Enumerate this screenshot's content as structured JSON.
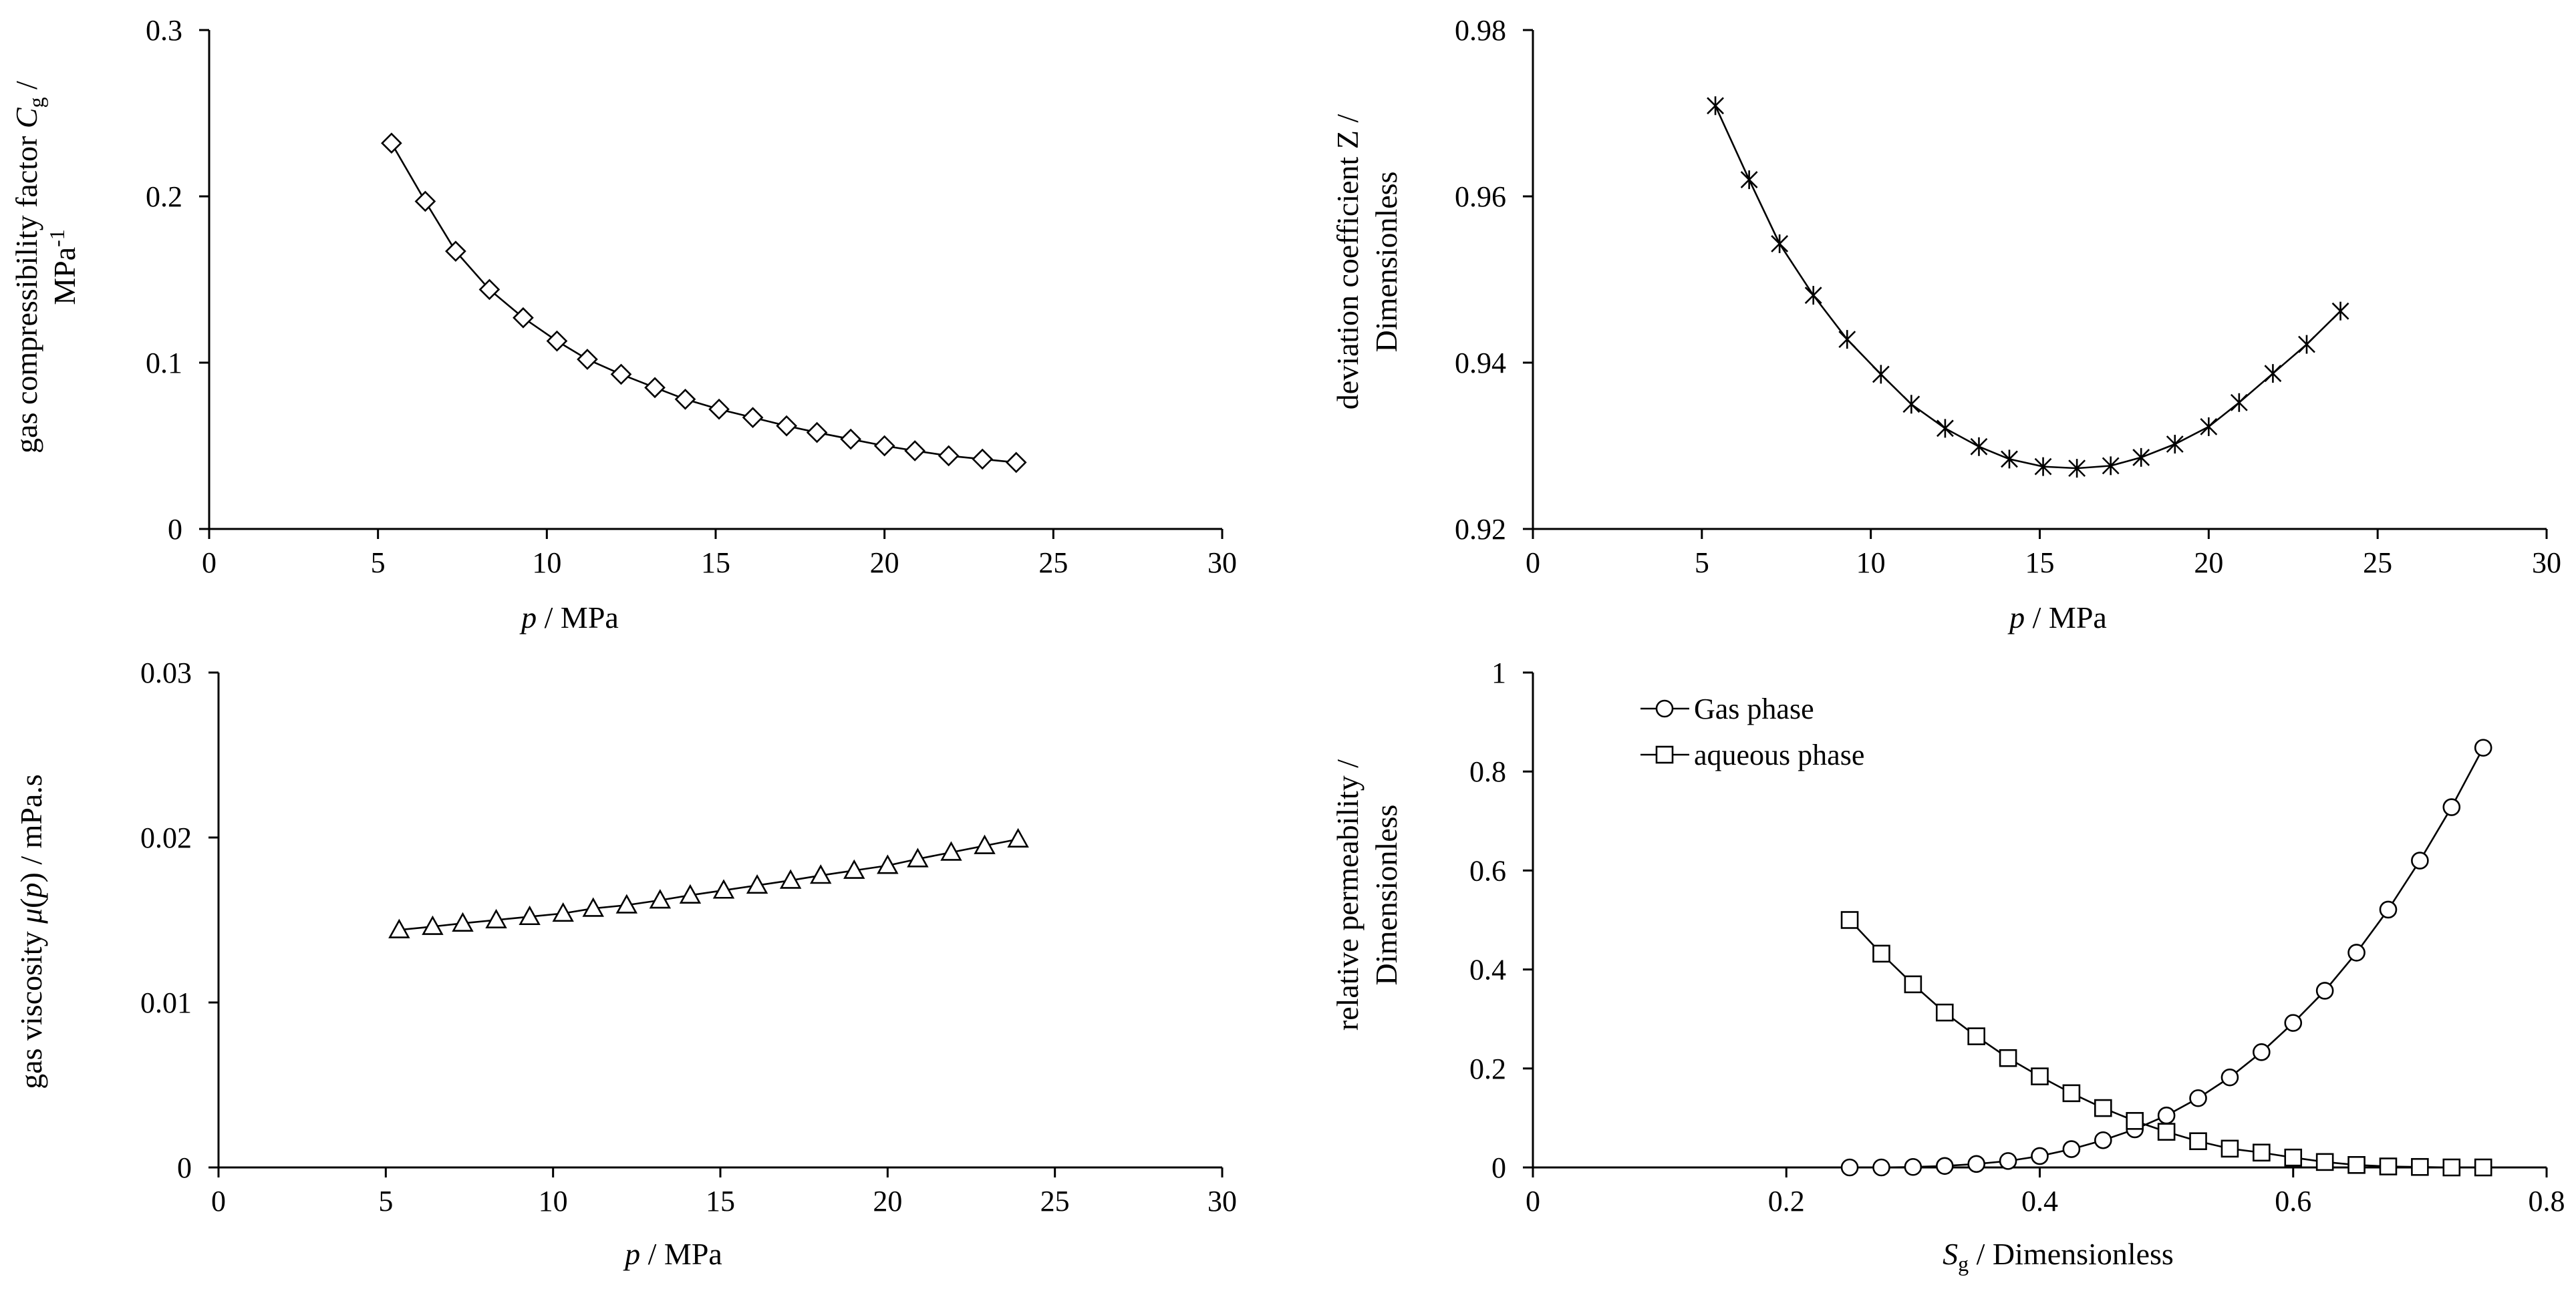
{
  "chart_data": [
    {
      "type": "line",
      "marker": "diamond",
      "x_ticks": [
        "0",
        "5",
        "10",
        "15",
        "20",
        "25",
        "30"
      ],
      "y_ticks": [
        "0",
        "0.1",
        "0.2",
        "0.3"
      ],
      "xlim": [
        0,
        30
      ],
      "ylim": [
        0,
        0.3
      ],
      "xlabel": {
        "italic": "p",
        "rest": " / MPa"
      },
      "ylabel": {
        "line1_pre": "gas compressibility factor ",
        "line1_italic": "C",
        "line1_sub": "g",
        "line1_post": " /",
        "line2": "MPa",
        "line2_sup": "-1"
      },
      "series": [
        {
          "name": "gas compressibility factor",
          "x": [
            5.4,
            6.4,
            7.3,
            8.3,
            9.3,
            10.3,
            11.2,
            12.2,
            13.2,
            14.1,
            15.1,
            16.1,
            17.1,
            18.0,
            19.0,
            20.0,
            20.9,
            21.9,
            22.9,
            23.9
          ],
          "y": [
            0.232,
            0.197,
            0.167,
            0.144,
            0.127,
            0.113,
            0.102,
            0.093,
            0.085,
            0.078,
            0.072,
            0.067,
            0.062,
            0.058,
            0.054,
            0.05,
            0.047,
            0.044,
            0.042,
            0.04
          ]
        }
      ]
    },
    {
      "type": "line",
      "marker": "asterisk",
      "x_ticks": [
        "0",
        "5",
        "10",
        "15",
        "20",
        "25",
        "30"
      ],
      "y_ticks": [
        "0.92",
        "0.94",
        "0.96",
        "0.98"
      ],
      "xlim": [
        0,
        30
      ],
      "ylim": [
        0.92,
        0.98
      ],
      "xlabel": {
        "italic": "p",
        "rest": " / MPa"
      },
      "ylabel": {
        "line1": "deviation coefficient Z /",
        "line2": "Dimensionless"
      },
      "series": [
        {
          "name": "deviation coefficient Z",
          "x": [
            5.4,
            6.4,
            7.3,
            8.3,
            9.3,
            10.3,
            11.2,
            12.2,
            13.2,
            14.1,
            15.1,
            16.1,
            17.1,
            18.0,
            19.0,
            20.0,
            20.9,
            21.9,
            22.9,
            23.9
          ],
          "y": [
            0.9709,
            0.962,
            0.9543,
            0.9481,
            0.9428,
            0.9386,
            0.935,
            0.9321,
            0.9299,
            0.9284,
            0.9275,
            0.9273,
            0.9276,
            0.9286,
            0.9302,
            0.9323,
            0.9352,
            0.9387,
            0.9422,
            0.9462
          ]
        }
      ]
    },
    {
      "type": "line",
      "marker": "triangle",
      "x_ticks": [
        "0",
        "5",
        "10",
        "15",
        "20",
        "25",
        "30"
      ],
      "y_ticks": [
        "0",
        "0.01",
        "0.02",
        "0.03"
      ],
      "xlim": [
        0,
        30
      ],
      "ylim": [
        0,
        0.03
      ],
      "xlabel": {
        "italic": "p",
        "rest": " / MPa"
      },
      "ylabel": {
        "pre": "gas viscosity ",
        "italic": "μ",
        "mid": "(",
        "italic2": "p",
        "post": ") / mPa.s"
      },
      "series": [
        {
          "name": "gas viscosity",
          "x": [
            5.4,
            6.4,
            7.3,
            8.3,
            9.3,
            10.3,
            11.2,
            12.2,
            13.2,
            14.1,
            15.1,
            16.1,
            17.1,
            18.0,
            19.0,
            20.0,
            20.9,
            21.9,
            22.9,
            23.9
          ],
          "y": [
            0.0144,
            0.0146,
            0.0148,
            0.015,
            0.0152,
            0.0154,
            0.0157,
            0.0159,
            0.0162,
            0.0165,
            0.0168,
            0.0171,
            0.0174,
            0.0177,
            0.018,
            0.0183,
            0.0187,
            0.0191,
            0.0195,
            0.0199
          ]
        }
      ]
    },
    {
      "type": "line",
      "x_ticks": [
        "0",
        "0.2",
        "0.4",
        "0.6",
        "0.8"
      ],
      "y_ticks": [
        "0",
        "0.2",
        "0.4",
        "0.6",
        "0.8",
        "1"
      ],
      "xlim": [
        0,
        0.8
      ],
      "ylim": [
        0,
        1
      ],
      "xlabel": {
        "italic": "S",
        "sub": "g",
        "rest": " / Dimensionless"
      },
      "ylabel": {
        "line1": "relative permeability /",
        "line2": "Dimensionless"
      },
      "legend": {
        "placement": "top-left"
      },
      "series": [
        {
          "name": "Gas phase",
          "marker": "circle",
          "x": [
            0.25,
            0.275,
            0.3,
            0.325,
            0.35,
            0.375,
            0.4,
            0.425,
            0.45,
            0.475,
            0.5,
            0.525,
            0.55,
            0.575,
            0.6,
            0.625,
            0.65,
            0.675,
            0.7,
            0.725,
            0.75
          ],
          "y": [
            0.0,
            0.0,
            0.001,
            0.003,
            0.007,
            0.013,
            0.023,
            0.037,
            0.055,
            0.077,
            0.105,
            0.14,
            0.182,
            0.233,
            0.292,
            0.357,
            0.434,
            0.521,
            0.62,
            0.728,
            0.848
          ]
        },
        {
          "name": "aqueous phase",
          "marker": "square",
          "x": [
            0.25,
            0.275,
            0.3,
            0.325,
            0.35,
            0.375,
            0.4,
            0.425,
            0.45,
            0.475,
            0.5,
            0.525,
            0.55,
            0.575,
            0.6,
            0.625,
            0.65,
            0.675,
            0.7,
            0.725,
            0.75
          ],
          "y": [
            0.5,
            0.432,
            0.37,
            0.313,
            0.265,
            0.221,
            0.184,
            0.15,
            0.12,
            0.094,
            0.072,
            0.053,
            0.038,
            0.03,
            0.02,
            0.011,
            0.005,
            0.002,
            0.001,
            0.0,
            0.0
          ]
        }
      ]
    }
  ]
}
